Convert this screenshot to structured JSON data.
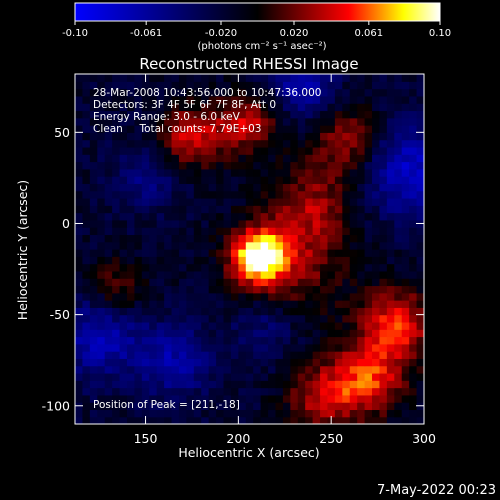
{
  "chart_data": {
    "type": "heatmap",
    "title": "Reconstructed RHESSI Image",
    "xlabel": "Heliocentric X (arcsec)",
    "ylabel": "Heliocentric Y (arcsec)",
    "xlim": [
      112,
      300
    ],
    "ylim": [
      -110,
      82
    ],
    "x_ticks": [
      150,
      200,
      250,
      300
    ],
    "y_ticks": [
      50,
      0,
      -50,
      -100
    ],
    "colorbar": {
      "range": [
        -0.1,
        0.1
      ],
      "tick_values": [
        -0.1,
        -0.061,
        -0.02,
        0.02,
        0.061,
        0.1
      ],
      "tick_labels": [
        "-0.10",
        "-0.061",
        "-0.020",
        "0.020",
        "0.061",
        "0.10"
      ],
      "unit": "(photons cm⁻² s⁻¹ asec⁻²)",
      "stops": [
        "#0000ff",
        "#000000",
        "#ff0000",
        "#ffff00",
        "#ffffff"
      ]
    },
    "annotations": {
      "time_range": "28-Mar-2008 10:43:56.000 to 10:47:36.000",
      "detectors": "Detectors: 3F 4F 5F 6F 7F 8F, Att 0",
      "energy": "Energy Range: 3.0 - 6.0 keV",
      "clean": "Clean     Total counts: 7.79E+03",
      "peak": "Position of Peak = [211,-18]"
    },
    "peak_position": [
      211,
      -18
    ],
    "total_counts": 7790,
    "sources": [
      {
        "x": 211,
        "y": -18,
        "amplitude": 0.1,
        "sigma": 10
      },
      {
        "x": 225,
        "y": -25,
        "amplitude": 0.045,
        "sigma": 22
      },
      {
        "x": 285,
        "y": -55,
        "amplitude": 0.07,
        "sigma": 14
      },
      {
        "x": 270,
        "y": -85,
        "amplitude": 0.065,
        "sigma": 14
      },
      {
        "x": 245,
        "y": -95,
        "amplitude": 0.05,
        "sigma": 14
      },
      {
        "x": 175,
        "y": 48,
        "amplitude": 0.06,
        "sigma": 12
      },
      {
        "x": 205,
        "y": 55,
        "amplitude": 0.055,
        "sigma": 12
      },
      {
        "x": 260,
        "y": 45,
        "amplitude": 0.05,
        "sigma": 14
      },
      {
        "x": 135,
        "y": -35,
        "amplitude": 0.04,
        "sigma": 11
      },
      {
        "x": 240,
        "y": 10,
        "amplitude": 0.04,
        "sigma": 16
      },
      {
        "x": 125,
        "y": -62,
        "amplitude": -0.05,
        "sigma": 16
      },
      {
        "x": 165,
        "y": -75,
        "amplitude": -0.045,
        "sigma": 14
      },
      {
        "x": 215,
        "y": -55,
        "amplitude": -0.035,
        "sigma": 14
      },
      {
        "x": 290,
        "y": 30,
        "amplitude": -0.06,
        "sigma": 18
      },
      {
        "x": 235,
        "y": 75,
        "amplitude": -0.05,
        "sigma": 12
      },
      {
        "x": 150,
        "y": 25,
        "amplitude": -0.03,
        "sigma": 12
      }
    ],
    "grid": false
  },
  "footer": {
    "date": "7-May-2022 00:23"
  }
}
